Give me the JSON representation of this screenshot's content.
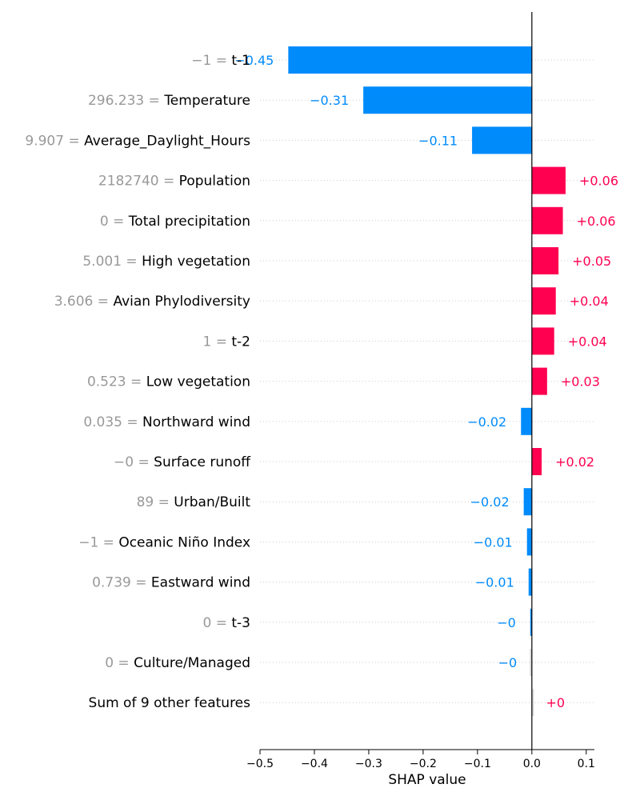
{
  "chart_data": {
    "type": "bar",
    "orientation": "horizontal",
    "xlabel": "SHAP value",
    "xlim": [
      -0.5,
      0.115
    ],
    "xticks": [
      "−0.5",
      "−0.4",
      "−0.3",
      "−0.2",
      "−0.1",
      "0.0",
      "0.1"
    ],
    "xtick_values": [
      -0.5,
      -0.4,
      -0.3,
      -0.2,
      -0.1,
      0.0,
      0.1
    ],
    "grid": "dotted horizontal guides per row",
    "colors": {
      "positive": "#ff0051",
      "negative": "#008bfb",
      "other": "#d9d9d9",
      "feature_value": "#999999"
    },
    "rows": [
      {
        "feature_value": "−1 = ",
        "feature": "t-1",
        "value": -0.448,
        "label": "−0.45"
      },
      {
        "feature_value": "296.233 = ",
        "feature": "Temperature",
        "value": -0.31,
        "label": "−0.31"
      },
      {
        "feature_value": "9.907 = ",
        "feature": "Average_Daylight_Hours",
        "value": -0.11,
        "label": "−0.11"
      },
      {
        "feature_value": "2182740 = ",
        "feature": "Population",
        "value": 0.062,
        "label": "+0.06"
      },
      {
        "feature_value": "0 = ",
        "feature": "Total precipitation",
        "value": 0.057,
        "label": "+0.06"
      },
      {
        "feature_value": "5.001 = ",
        "feature": "High vegetation",
        "value": 0.049,
        "label": "+0.05"
      },
      {
        "feature_value": "3.606 = ",
        "feature": "Avian Phylodiversity",
        "value": 0.044,
        "label": "+0.04"
      },
      {
        "feature_value": "1 = ",
        "feature": "t-2",
        "value": 0.041,
        "label": "+0.04"
      },
      {
        "feature_value": "0.523 = ",
        "feature": "Low vegetation",
        "value": 0.028,
        "label": "+0.03"
      },
      {
        "feature_value": "0.035 = ",
        "feature": "Northward wind",
        "value": -0.02,
        "label": "−0.02"
      },
      {
        "feature_value": "−0 = ",
        "feature": "Surface runoff",
        "value": 0.018,
        "label": "+0.02"
      },
      {
        "feature_value": "89 = ",
        "feature": "Urban/Built",
        "value": -0.015,
        "label": "−0.02"
      },
      {
        "feature_value": "−1 = ",
        "feature": "Oceanic Niño Index",
        "value": -0.009,
        "label": "−0.01"
      },
      {
        "feature_value": "0.739 = ",
        "feature": "Eastward wind",
        "value": -0.006,
        "label": "−0.01"
      },
      {
        "feature_value": "0 = ",
        "feature": "t-3",
        "value": -0.003,
        "label": "−0"
      },
      {
        "feature_value": "0 = ",
        "feature": "Culture/Managed",
        "value": -0.001,
        "label": "−0",
        "neutral": true
      },
      {
        "feature_value": "",
        "feature": "Sum of 9 other features",
        "value": 0.001,
        "label": "+0",
        "neutral": true
      }
    ]
  }
}
